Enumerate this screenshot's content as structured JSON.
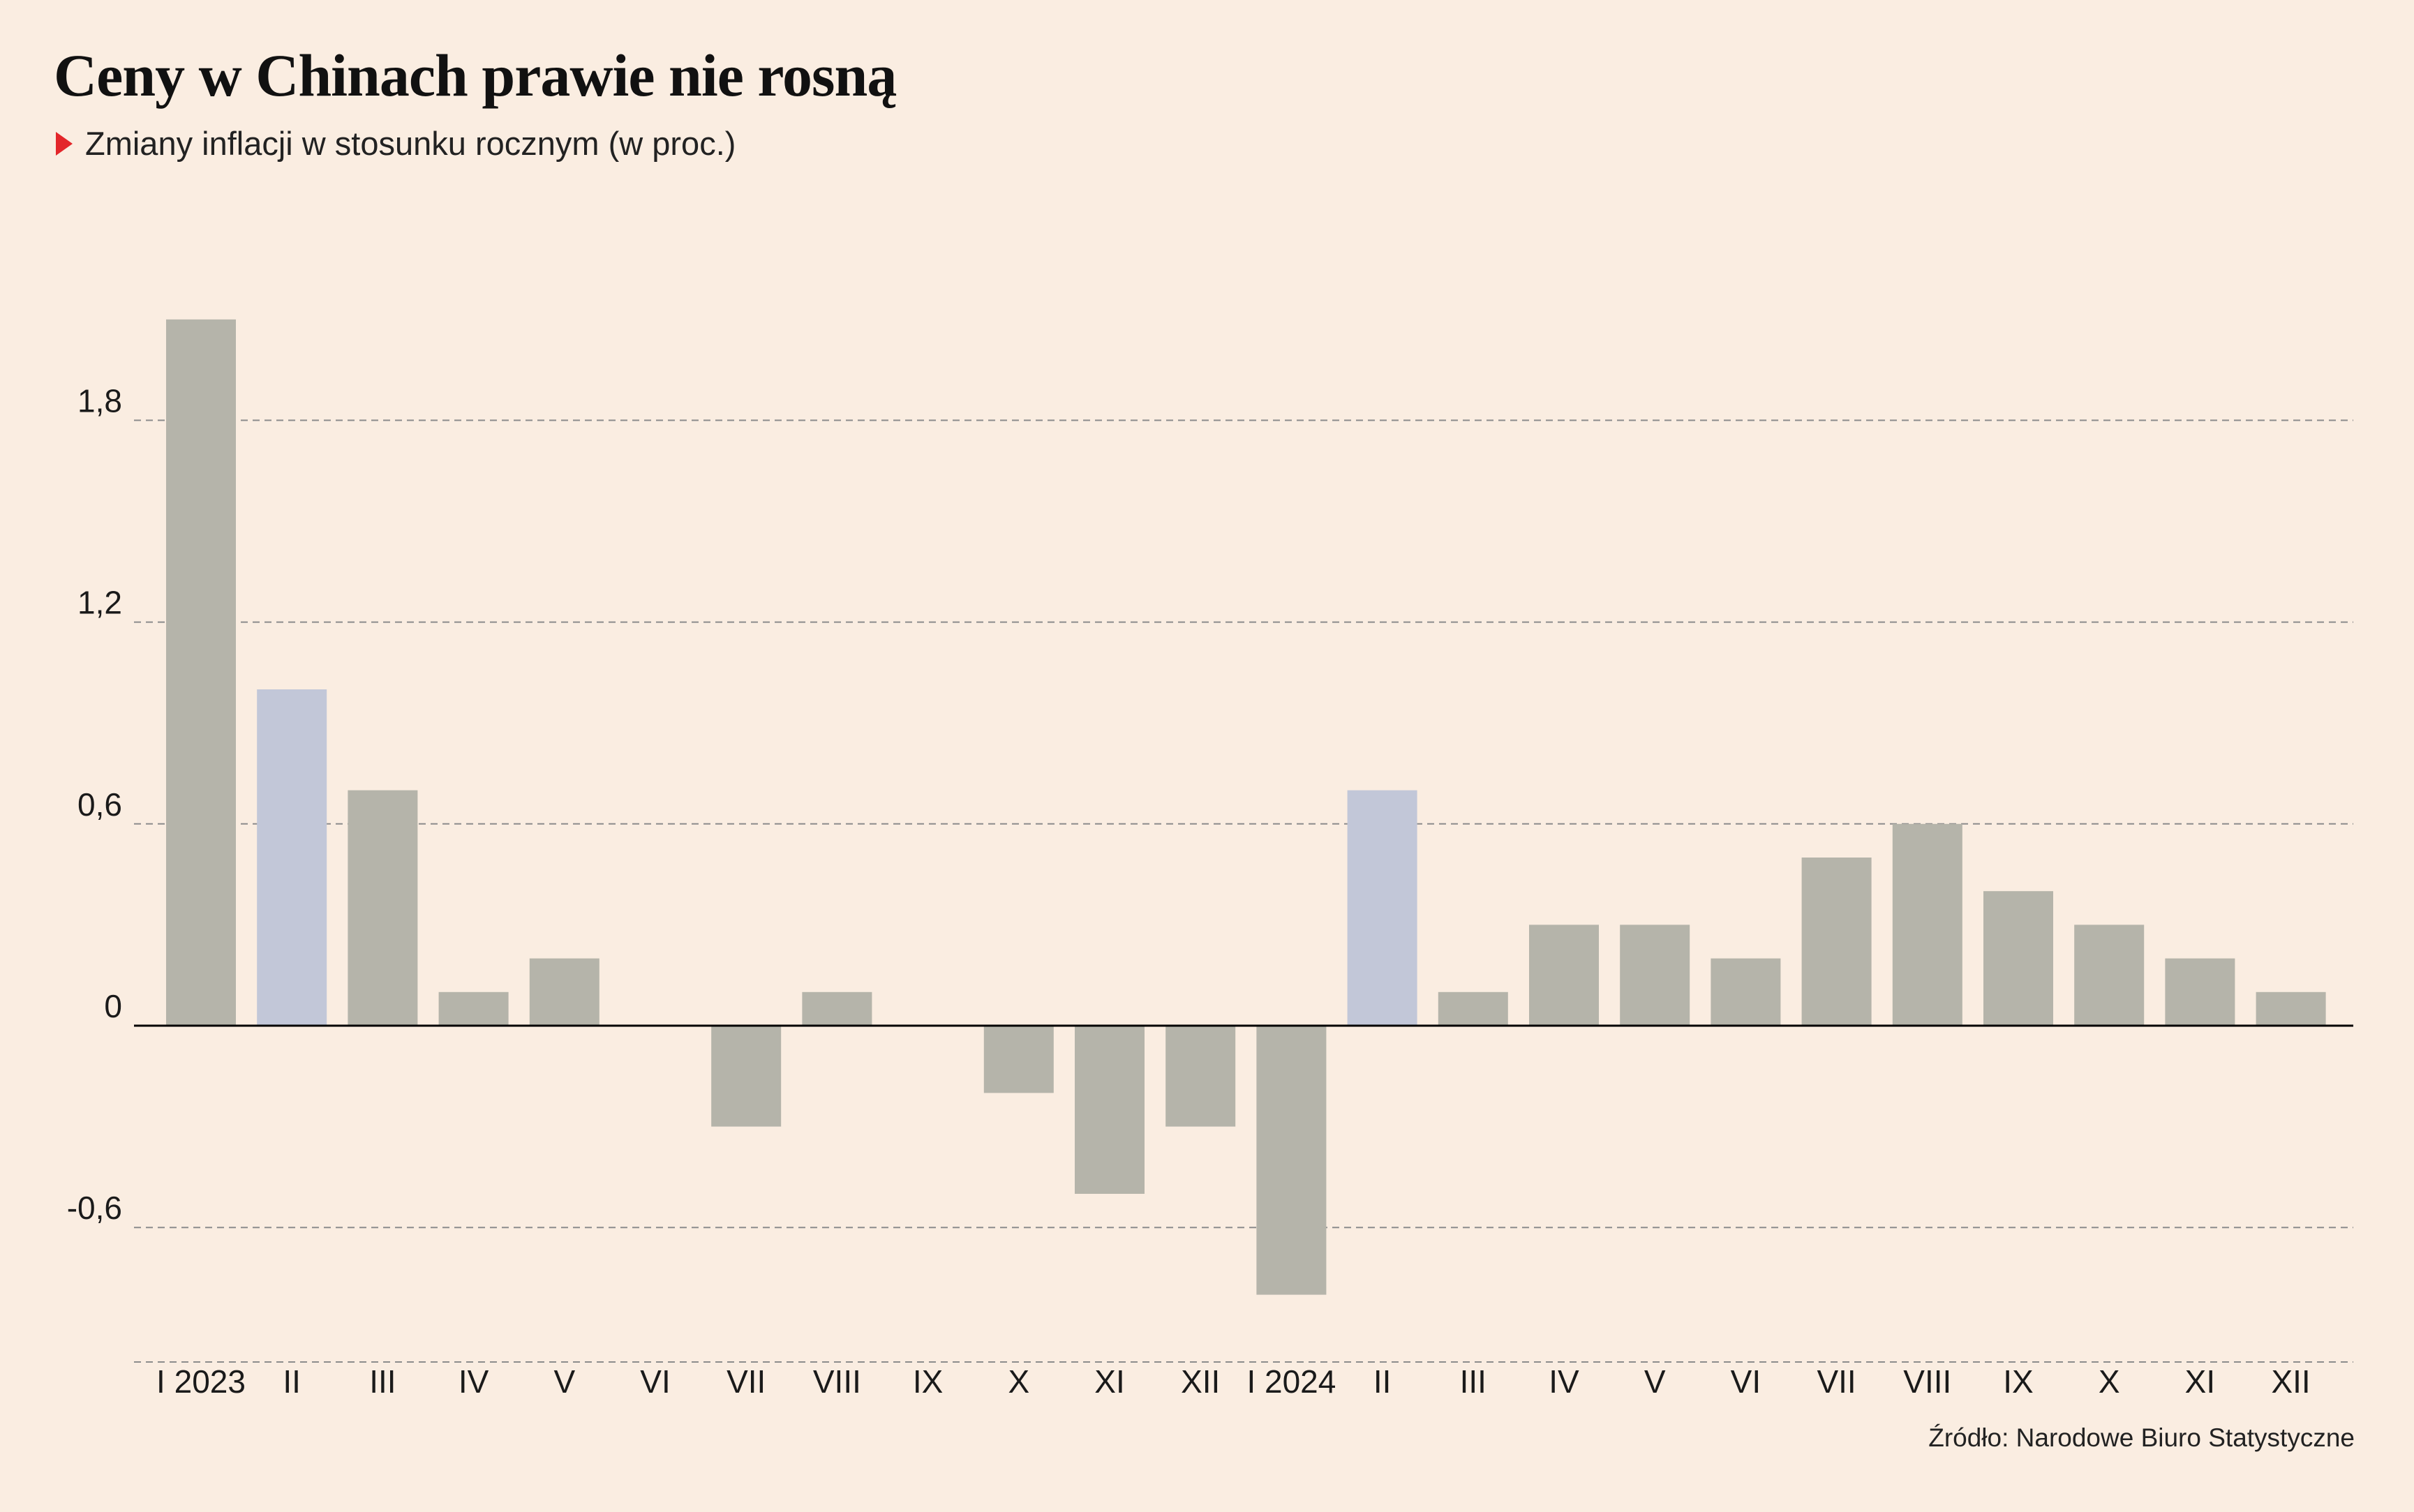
{
  "header": {
    "title": "Ceny w Chinach prawie nie rosną",
    "subtitle": "Zmiany inflacji w stosunku rocznym (w proc.)"
  },
  "footer": {
    "source": "Źródło: Narodowe Biuro Statystyczne"
  },
  "colors": {
    "background": "#FAEDE1",
    "bar": "#B5B4AA",
    "bar_highlight": "#C2C7D8",
    "marker": "#E3262A",
    "zero_line": "#000000",
    "grid": "#8C8C8C"
  },
  "chart_data": {
    "type": "bar",
    "title": "Ceny w Chinach prawie nie rosną",
    "subtitle": "Zmiany inflacji w stosunku rocznym (w proc.)",
    "categories": [
      "I 2023",
      "II",
      "III",
      "IV",
      "V",
      "VI",
      "VII",
      "VIII",
      "IX",
      "X",
      "XI",
      "XII",
      "I 2024",
      "II",
      "III",
      "IV",
      "V",
      "VI",
      "VII",
      "VIII",
      "IX",
      "X",
      "XI",
      "XII"
    ],
    "values": [
      2.1,
      1.0,
      0.7,
      0.1,
      0.2,
      0.0,
      -0.3,
      0.1,
      0.0,
      -0.2,
      -0.5,
      -0.3,
      -0.8,
      0.7,
      0.1,
      0.3,
      0.3,
      0.2,
      0.5,
      0.6,
      0.4,
      0.3,
      0.2,
      0.1
    ],
    "highlighted": [
      1,
      13
    ],
    "y_ticks": [
      -0.6,
      0,
      0.6,
      1.2,
      1.8
    ],
    "y_tick_labels": [
      "-0,6",
      "0",
      "0,6",
      "1,2",
      "1,8"
    ],
    "ylim": [
      -1.0,
      2.2
    ],
    "grid": true,
    "xlabel": "",
    "ylabel": ""
  }
}
